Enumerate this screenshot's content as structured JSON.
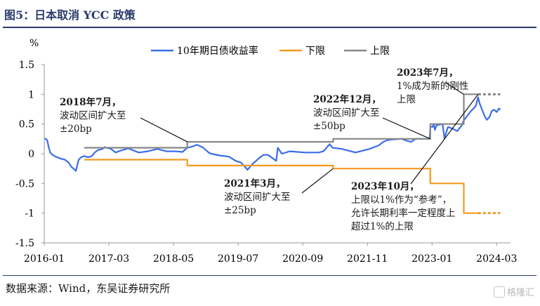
{
  "figure": {
    "title": "图5：日本取消 YCC 政策",
    "source": "数据来源：Wind，东吴证券研究所",
    "watermark": "格隆汇"
  },
  "chart_data": {
    "type": "line",
    "ylabel": "%",
    "ylim": [
      -1.5,
      1.5
    ],
    "yticks": [
      1.5,
      1,
      0.5,
      0,
      -0.5,
      -1,
      -1.5
    ],
    "ytick_labels": [
      "1.5",
      "1",
      "0.5",
      "0",
      "-0.5",
      "-1",
      "-1.5"
    ],
    "xlim": [
      "2016-01",
      "2024-06"
    ],
    "xticks": [
      "2016-01",
      "2017-03",
      "2018-05",
      "2019-07",
      "2020-09",
      "2021-11",
      "2023-01",
      "2024-03"
    ],
    "legend": {
      "position": "top",
      "entries": [
        "10年期日债收益率",
        "下限",
        "上限"
      ]
    },
    "series": [
      {
        "name": "10年期日债收益率",
        "color": "#3a6ee8",
        "points": [
          [
            "2016-01-04",
            0.26
          ],
          [
            "2016-01-20",
            0.23
          ],
          [
            "2016-02-01",
            0.1
          ],
          [
            "2016-02-10",
            0.02
          ],
          [
            "2016-02-25",
            -0.02
          ],
          [
            "2016-03-15",
            -0.05
          ],
          [
            "2016-04-15",
            -0.08
          ],
          [
            "2016-05-15",
            -0.1
          ],
          [
            "2016-06-10",
            -0.15
          ],
          [
            "2016-06-27",
            -0.22
          ],
          [
            "2016-07-15",
            -0.26
          ],
          [
            "2016-07-27",
            -0.29
          ],
          [
            "2016-08-15",
            -0.1
          ],
          [
            "2016-09-01",
            -0.06
          ],
          [
            "2016-09-21",
            -0.04
          ],
          [
            "2016-10-15",
            -0.06
          ],
          [
            "2016-11-10",
            -0.04
          ],
          [
            "2016-11-30",
            0.02
          ],
          [
            "2016-12-20",
            0.06
          ],
          [
            "2017-01-20",
            0.08
          ],
          [
            "2017-02-03",
            0.11
          ],
          [
            "2017-03-15",
            0.08
          ],
          [
            "2017-04-15",
            0.02
          ],
          [
            "2017-05-15",
            0.05
          ],
          [
            "2017-07-07",
            0.09
          ],
          [
            "2017-09-15",
            0.02
          ],
          [
            "2017-11-15",
            0.04
          ],
          [
            "2018-01-15",
            0.08
          ],
          [
            "2018-03-15",
            0.04
          ],
          [
            "2018-05-15",
            0.04
          ],
          [
            "2018-06-30",
            0.03
          ],
          [
            "2018-07-31",
            0.1
          ],
          [
            "2018-08-20",
            0.11
          ],
          [
            "2018-10-04",
            0.15
          ],
          [
            "2018-11-15",
            0.1
          ],
          [
            "2018-12-15",
            0.03
          ],
          [
            "2019-01-04",
            0.0
          ],
          [
            "2019-03-01",
            -0.03
          ],
          [
            "2019-05-01",
            -0.05
          ],
          [
            "2019-06-15",
            -0.12
          ],
          [
            "2019-07-20",
            -0.15
          ],
          [
            "2019-08-15",
            -0.22
          ],
          [
            "2019-09-02",
            -0.27
          ],
          [
            "2019-09-25",
            -0.2
          ],
          [
            "2019-10-15",
            -0.15
          ],
          [
            "2019-11-15",
            -0.08
          ],
          [
            "2019-12-15",
            -0.02
          ],
          [
            "2020-01-15",
            -0.02
          ],
          [
            "2020-03-09",
            -0.12
          ],
          [
            "2020-03-19",
            0.1
          ],
          [
            "2020-04-15",
            0.0
          ],
          [
            "2020-06-08",
            0.04
          ],
          [
            "2020-09-15",
            0.02
          ],
          [
            "2020-12-15",
            0.02
          ],
          [
            "2021-01-15",
            0.04
          ],
          [
            "2021-02-26",
            0.16
          ],
          [
            "2021-03-15",
            0.1
          ],
          [
            "2021-05-15",
            0.08
          ],
          [
            "2021-08-15",
            0.02
          ],
          [
            "2021-09-15",
            0.04
          ],
          [
            "2021-11-15",
            0.08
          ],
          [
            "2022-01-15",
            0.14
          ],
          [
            "2022-02-15",
            0.2
          ],
          [
            "2022-03-15",
            0.23
          ],
          [
            "2022-04-15",
            0.24
          ],
          [
            "2022-06-15",
            0.25
          ],
          [
            "2022-07-15",
            0.22
          ],
          [
            "2022-08-15",
            0.2
          ],
          [
            "2022-09-15",
            0.25
          ],
          [
            "2022-11-15",
            0.25
          ],
          [
            "2022-12-15",
            0.25
          ],
          [
            "2022-12-21",
            0.46
          ],
          [
            "2023-01-05",
            0.45
          ],
          [
            "2023-01-13",
            0.5
          ],
          [
            "2023-01-20",
            0.4
          ],
          [
            "2023-02-01",
            0.48
          ],
          [
            "2023-03-10",
            0.5
          ],
          [
            "2023-03-22",
            0.26
          ],
          [
            "2023-04-15",
            0.45
          ],
          [
            "2023-05-15",
            0.42
          ],
          [
            "2023-06-15",
            0.38
          ],
          [
            "2023-07-15",
            0.48
          ],
          [
            "2023-07-28",
            0.56
          ],
          [
            "2023-08-15",
            0.62
          ],
          [
            "2023-09-15",
            0.72
          ],
          [
            "2023-10-15",
            0.8
          ],
          [
            "2023-10-31",
            0.95
          ],
          [
            "2023-11-10",
            0.85
          ],
          [
            "2023-11-25",
            0.75
          ],
          [
            "2023-12-15",
            0.62
          ],
          [
            "2023-12-28",
            0.57
          ],
          [
            "2024-01-15",
            0.62
          ],
          [
            "2024-01-30",
            0.72
          ],
          [
            "2024-02-15",
            0.74
          ],
          [
            "2024-03-01",
            0.7
          ],
          [
            "2024-03-15",
            0.76
          ],
          [
            "2024-03-25",
            0.74
          ]
        ]
      },
      {
        "name": "下限",
        "color": "#f39a1e",
        "points": [
          [
            "2016-09-21",
            -0.1
          ],
          [
            "2018-07-31",
            -0.1
          ],
          [
            "2018-07-31",
            -0.2
          ],
          [
            "2021-03-19",
            -0.2
          ],
          [
            "2021-03-19",
            -0.25
          ],
          [
            "2022-12-20",
            -0.25
          ],
          [
            "2022-12-20",
            -0.5
          ],
          [
            "2023-07-28",
            -0.5
          ],
          [
            "2023-07-28",
            -1.0
          ],
          [
            "2023-10-31",
            -1.0
          ]
        ],
        "dashed_after": [
          "2023-10-31",
          "2024-03-25",
          -1.0
        ]
      },
      {
        "name": "上限",
        "color": "#878787",
        "points": [
          [
            "2016-09-21",
            0.1
          ],
          [
            "2018-07-31",
            0.1
          ],
          [
            "2018-07-31",
            0.2
          ],
          [
            "2021-03-19",
            0.2
          ],
          [
            "2021-03-19",
            0.25
          ],
          [
            "2022-12-20",
            0.25
          ],
          [
            "2022-12-20",
            0.5
          ],
          [
            "2023-07-28",
            0.5
          ],
          [
            "2023-07-28",
            1.0
          ],
          [
            "2023-10-31",
            1.0
          ]
        ],
        "dashed_after": [
          "2023-10-31",
          "2024-03-25",
          1.0
        ]
      }
    ],
    "annotations": [
      {
        "lines": [
          "2018年7月，",
          "波动区间扩大至",
          "±20bp"
        ],
        "x": "2018-07-31",
        "y": 0.2
      },
      {
        "lines": [
          "2021年3月，",
          "波动区间扩大至",
          "±25bp"
        ],
        "x": "2021-03-19",
        "y": -0.25
      },
      {
        "lines": [
          "2022年12月，",
          "波动区间扩大至",
          "±50bp"
        ],
        "x": "2022-12-20",
        "y": 0.25
      },
      {
        "lines": [
          "2023年7月，",
          "1%成为新的刚性",
          "上限"
        ],
        "x": "2023-07-28",
        "y": 1.0
      },
      {
        "lines": [
          "2023年10月，",
          "上限以1%作为“参考”，",
          "允许长期利率一定程度上",
          "超过1%的上限"
        ],
        "x": "2023-10-31",
        "y": 1.0
      }
    ]
  }
}
